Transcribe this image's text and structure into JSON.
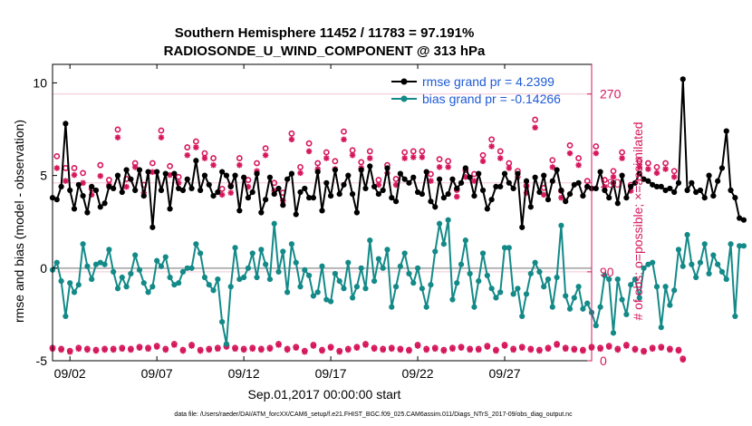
{
  "chart_data": {
    "type": "line",
    "title": "Southern Hemisphere 11452 / 11783 = 97.191%",
    "subtitle": "RADIOSONDE_U_WIND_COMPONENT @ 313 hPa",
    "xlabel": "Sep.01,2017 00:00:00 start",
    "ylabel": "rmse and bias (model - observation)",
    "y2label": "# of obs: o=possible; ×=assimilated",
    "xlim": [
      1,
      32
    ],
    "ylim": [
      -5,
      11
    ],
    "y2lim": [
      0,
      300
    ],
    "x_ticks": [
      2,
      7,
      12,
      17,
      22,
      27
    ],
    "x_tick_labels": [
      "09/02",
      "09/07",
      "09/12",
      "09/17",
      "09/22",
      "09/27"
    ],
    "y_ticks": [
      -5,
      0,
      5,
      10
    ],
    "y_tick_labels": [
      "-5",
      "0",
      "5",
      "10"
    ],
    "y2_ticks": [
      0,
      90,
      180,
      270
    ],
    "y2_tick_labels": [
      "0",
      "90",
      "180",
      "270"
    ],
    "zero_line": 0,
    "colors": {
      "rmse": "#000000",
      "bias": "#138a88",
      "obs": "#d6175c",
      "axis_right": "#d6175c",
      "legend_text": "#1f5bd6",
      "zero_line": "#b5b5b5"
    },
    "legend": [
      {
        "name": "rmse grand pr = 4.2399"
      },
      {
        "name": "bias grand pr = -0.14266"
      }
    ],
    "series": [
      {
        "name": "rmse",
        "x_start": 1,
        "x_step": 0.25,
        "values": [
          3.8,
          3.7,
          4.4,
          7.8,
          4.2,
          3.2,
          4.5,
          3.9,
          3.0,
          4.4,
          4.2,
          3.3,
          3.5,
          4.4,
          4.3,
          5.0,
          4.1,
          5.3,
          4.8,
          4.2,
          5.3,
          3.9,
          5.2,
          2.2,
          5.2,
          4.2,
          5.1,
          3.2,
          5.1,
          4.3,
          4.2,
          4.8,
          4.3,
          5.8,
          4.2,
          5.0,
          4.5,
          3.9,
          4.1,
          5.2,
          5.0,
          4.4,
          5.0,
          3.1,
          4.9,
          3.8,
          4.1,
          5.1,
          3.0,
          3.7,
          4.9,
          4.0,
          4.3,
          3.4,
          4.8,
          5.1,
          2.9,
          4.1,
          4.3,
          3.8,
          3.8,
          5.2,
          3.1,
          4.6,
          3.9,
          5.3,
          4.0,
          4.5,
          5.0,
          4.0,
          3.0,
          5.3,
          4.3,
          5.5,
          4.4,
          4.0,
          4.2,
          5.4,
          3.8,
          3.6,
          5.1,
          4.8,
          4.6,
          4.9,
          4.1,
          4.0,
          5.2,
          3.6,
          3.3,
          4.8,
          3.8,
          4.0,
          4.8,
          4.3,
          4.6,
          5.4,
          4.9,
          3.9,
          5.1,
          4.2,
          3.2,
          3.7,
          4.4,
          4.4,
          5.1,
          4.6,
          4.3,
          5.1,
          2.2,
          4.7,
          3.3,
          4.9,
          4.1,
          5.0,
          3.7,
          4.7,
          5.3,
          4.2,
          3.6,
          4.0,
          4.5,
          4.6,
          3.9,
          4.4,
          4.3,
          4.3,
          5.2,
          4.2,
          3.8,
          4.6,
          3.5,
          5.0,
          3.8,
          4.4,
          4.6,
          5.1,
          4.8,
          4.7,
          4.5,
          4.4,
          4.4,
          4.2,
          4.3,
          4.1,
          4.6,
          10.2,
          4.2,
          4.6,
          4.1,
          4.2,
          3.8,
          5.0,
          3.9,
          4.7,
          5.4,
          7.4,
          4.2,
          3.8,
          2.7,
          2.6
        ]
      },
      {
        "name": "bias",
        "x_start": 1,
        "x_step": 0.25,
        "values": [
          -0.1,
          0.3,
          -0.7,
          -2.6,
          -0.8,
          -1.3,
          -0.9,
          1.3,
          0.1,
          -0.6,
          0.2,
          0.3,
          0.2,
          1.0,
          -0.2,
          -1.1,
          -0.5,
          -1.0,
          -0.3,
          0.7,
          -0.1,
          -0.8,
          -1.3,
          -1.0,
          0.4,
          0.1,
          0.6,
          -0.5,
          -0.9,
          -0.8,
          -0.2,
          0.0,
          0.0,
          1.3,
          0.8,
          -0.5,
          -0.9,
          -1.2,
          -0.6,
          -2.9,
          -4.1,
          -1.0,
          1.1,
          -0.6,
          -0.5,
          0.0,
          0.8,
          -0.5,
          1.0,
          0.2,
          -0.6,
          2.4,
          -0.2,
          0.9,
          -1.3,
          1.3,
          0.3,
          -1.0,
          -0.1,
          -0.4,
          -1.5,
          -1.3,
          0.1,
          -1.7,
          -1.8,
          -0.3,
          -0.7,
          -1.1,
          0.3,
          -1.6,
          -1.0,
          0.0,
          -1.1,
          1.5,
          -0.7,
          0.5,
          0.0,
          1.0,
          -2.1,
          -1.0,
          0.1,
          0.8,
          -0.3,
          -0.8,
          0.0,
          -1.1,
          -2.1,
          -0.9,
          0.9,
          2.4,
          1.3,
          2.6,
          -1.7,
          -0.8,
          0.2,
          1.5,
          -0.3,
          -2.1,
          -0.7,
          0.8,
          -0.4,
          -1.1,
          -1.6,
          -1.3,
          1.1,
          1.1,
          -1.4,
          -1.1,
          -2.6,
          -1.4,
          -0.3,
          0.3,
          -0.2,
          -1.0,
          -0.6,
          -2.1,
          -0.5,
          2.3,
          -1.5,
          -2.2,
          -1.6,
          -1.0,
          -2.2,
          -1.9,
          -2.4,
          -3.1,
          -2.1,
          -0.4,
          -0.6,
          -3.5,
          -0.6,
          -1.7,
          -2.5,
          -0.9,
          -0.6,
          -1.6,
          0.0,
          0.2,
          0.3,
          -1.0,
          -3.2,
          -1.0,
          -2.0,
          -1.2,
          1.0,
          0.1,
          1.8,
          0.2,
          -0.5,
          0.3,
          1.3,
          -0.3,
          0.7,
          0.2,
          -0.2,
          -0.6,
          1.3,
          -2.6,
          1.2,
          1.2
        ]
      },
      {
        "name": "obs_possible",
        "x_start": 1,
        "x_step": 0.25,
        "values": [
          13,
          207,
          12,
          195,
          10,
          195,
          13,
          190,
          12,
          174,
          11,
          198,
          12,
          183,
          12,
          234,
          13,
          184,
          12,
          200,
          14,
          178,
          13,
          200,
          15,
          233,
          12,
          197,
          17,
          186,
          11,
          216,
          16,
          222,
          11,
          210,
          12,
          205,
          13,
          174,
          15,
          177,
          13,
          205,
          12,
          183,
          13,
          200,
          12,
          215,
          13,
          180,
          17,
          170,
          12,
          230,
          14,
          196,
          10,
          220,
          16,
          200,
          11,
          211,
          14,
          202,
          10,
          232,
          12,
          213,
          14,
          201,
          17,
          212,
          13,
          183,
          12,
          198,
          13,
          184,
          12,
          211,
          11,
          212,
          16,
          212,
          12,
          189,
          13,
          204,
          11,
          202,
          13,
          173,
          14,
          193,
          12,
          189,
          12,
          208,
          15,
          224,
          11,
          212,
          16,
          200,
          12,
          192,
          14,
          177,
          12,
          244,
          11,
          175,
          13,
          203,
          17,
          172,
          13,
          218,
          12,
          205,
          11,
          182,
          14,
          217,
          13,
          183,
          15,
          192,
          12,
          211,
          16,
          178,
          12,
          202,
          10,
          200,
          13,
          196,
          14,
          200,
          12,
          192,
          11,
          2
        ]
      },
      {
        "name": "obs_assimilated",
        "x_start": 1,
        "x_step": 0.25,
        "values": [
          12,
          195,
          11,
          182,
          9,
          188,
          12,
          180,
          11,
          168,
          10,
          187,
          11,
          178,
          11,
          226,
          12,
          176,
          11,
          196,
          13,
          170,
          12,
          191,
          14,
          226,
          11,
          188,
          16,
          180,
          10,
          208,
          15,
          216,
          10,
          205,
          11,
          198,
          12,
          168,
          14,
          170,
          12,
          198,
          11,
          176,
          12,
          192,
          11,
          208,
          12,
          172,
          16,
          162,
          11,
          224,
          13,
          190,
          9,
          212,
          15,
          194,
          10,
          205,
          13,
          194,
          9,
          224,
          11,
          208,
          13,
          195,
          16,
          205,
          12,
          178,
          11,
          190,
          12,
          178,
          11,
          205,
          10,
          206,
          15,
          206,
          11,
          182,
          12,
          196,
          10,
          196,
          12,
          166,
          13,
          186,
          11,
          182,
          11,
          202,
          14,
          217,
          10,
          205,
          15,
          195,
          11,
          186,
          13,
          170,
          11,
          236,
          10,
          168,
          12,
          196,
          16,
          165,
          12,
          210,
          11,
          198,
          10,
          176,
          13,
          210,
          12,
          176,
          14,
          186,
          11,
          205,
          15,
          172,
          11,
          196,
          9,
          194,
          12,
          190,
          13,
          194,
          11,
          186,
          10,
          1
        ]
      }
    ]
  },
  "footer": "data file: /Users/raeder/DAI/ATM_forcXX/CAM6_setup/f.e21.FHIST_BGC.f09_025.CAM6assim.011/Diags_NTrS_2017-09/obs_diag_output.nc"
}
